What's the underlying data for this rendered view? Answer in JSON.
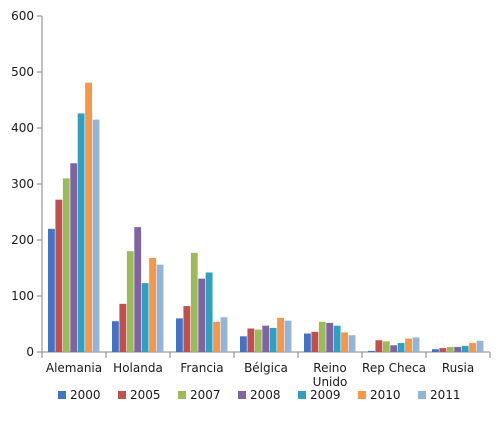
{
  "chart_data": {
    "type": "bar",
    "title": "",
    "xlabel": "",
    "ylabel": "",
    "ylim": [
      0,
      600
    ],
    "yticks": [
      0,
      100,
      200,
      300,
      400,
      500,
      600
    ],
    "grid": false,
    "legend_position": "bottom",
    "categories": [
      [
        "Alemania"
      ],
      [
        "Holanda"
      ],
      [
        "Francia"
      ],
      [
        "Bélgica"
      ],
      [
        "Reino",
        "Unido"
      ],
      [
        "Rep Checa"
      ],
      [
        "Rusia"
      ]
    ],
    "series": [
      {
        "name": "2000",
        "color": "#4472C4",
        "values": [
          220,
          55,
          60,
          28,
          33,
          2,
          5
        ]
      },
      {
        "name": "2005",
        "color": "#C0504D",
        "values": [
          272,
          86,
          82,
          42,
          36,
          21,
          7
        ]
      },
      {
        "name": "2007",
        "color": "#9BBB59",
        "values": [
          310,
          180,
          177,
          40,
          54,
          19,
          9
        ]
      },
      {
        "name": "2008",
        "color": "#8064A2",
        "values": [
          337,
          223,
          131,
          47,
          52,
          12,
          9
        ]
      },
      {
        "name": "2009",
        "color": "#31A0C0",
        "values": [
          426,
          123,
          142,
          43,
          47,
          16,
          11
        ]
      },
      {
        "name": "2010",
        "color": "#F79646",
        "values": [
          481,
          168,
          54,
          61,
          35,
          24,
          16
        ]
      },
      {
        "name": "2011",
        "color": "#95B3D7",
        "values": [
          415,
          156,
          62,
          56,
          30,
          26,
          20
        ]
      }
    ]
  }
}
